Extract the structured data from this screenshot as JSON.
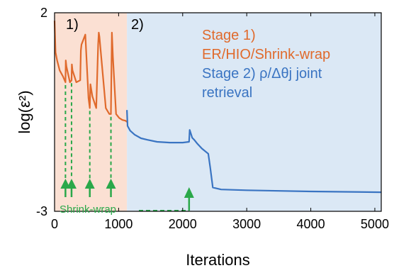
{
  "chart_data": {
    "type": "line",
    "xlabel": "Iterations",
    "ylabel": "log(ε²)",
    "xlim": [
      0,
      5100
    ],
    "ylim": [
      -3,
      2
    ],
    "xticks": [
      0,
      1000,
      2000,
      3000,
      4000,
      5000
    ],
    "yticks": [
      -3,
      2
    ],
    "ytick_labels": [
      "-3",
      "2"
    ],
    "grid": false,
    "regions": [
      {
        "label": "1)",
        "x_range": [
          0,
          1130
        ],
        "color": "#fbe0d3"
      },
      {
        "label": "2)",
        "x_range": [
          1130,
          5100
        ],
        "color": "#dbe8f5"
      }
    ],
    "legend": {
      "placement": "top-right",
      "entries": [
        {
          "line1": "Stage 1)",
          "line2": "ER/HIO/Shrink-wrap",
          "color": "#e06a2c"
        },
        {
          "line1": "Stage 2) ρ/Δθj joint",
          "line2": "retrieval",
          "color": "#3a74c2"
        }
      ]
    },
    "series": [
      {
        "color": "#e06a2c",
        "x": [
          0,
          15,
          40,
          80,
          130,
          170,
          175,
          185,
          240,
          265,
          270,
          280,
          340,
          400,
          410,
          420,
          480,
          530,
          550,
          560,
          590,
          650,
          680,
          690,
          700,
          750,
          800,
          855,
          880,
          895,
          910,
          960,
          1010,
          1060,
          1110,
          1130
        ],
        "y": [
          1.8,
          1.0,
          0.8,
          0.55,
          0.4,
          0.25,
          0.8,
          0.65,
          0.25,
          0.3,
          0.7,
          0.55,
          0.25,
          0.3,
          1.05,
          1.2,
          1.45,
          -0.15,
          -0.4,
          0.2,
          -0.1,
          -0.4,
          1.2,
          1.5,
          1.4,
          0.5,
          -0.4,
          -0.55,
          -0.55,
          1.5,
          0.9,
          -0.55,
          -0.65,
          -0.7,
          -0.72,
          -0.75
        ]
      },
      {
        "color": "#3a74c2",
        "x": [
          1130,
          1140,
          1180,
          1250,
          1350,
          1450,
          1600,
          1800,
          2000,
          2100,
          2110,
          2150,
          2180,
          2230,
          2300,
          2400,
          2430,
          2470,
          2600,
          3000,
          4000,
          5100
        ],
        "y": [
          -0.45,
          -0.85,
          -0.97,
          -1.07,
          -1.16,
          -1.2,
          -1.25,
          -1.27,
          -1.27,
          -1.25,
          -0.95,
          -1.15,
          -1.2,
          -1.3,
          -1.42,
          -1.55,
          -1.9,
          -2.4,
          -2.45,
          -2.47,
          -2.5,
          -2.52
        ]
      }
    ],
    "annotations": {
      "text": "Shrink-wrap",
      "color": "#2aa84a",
      "shrink_wrap_markers_x": [
        170,
        265,
        550,
        880
      ],
      "stage2_marker_x": 2100
    }
  }
}
